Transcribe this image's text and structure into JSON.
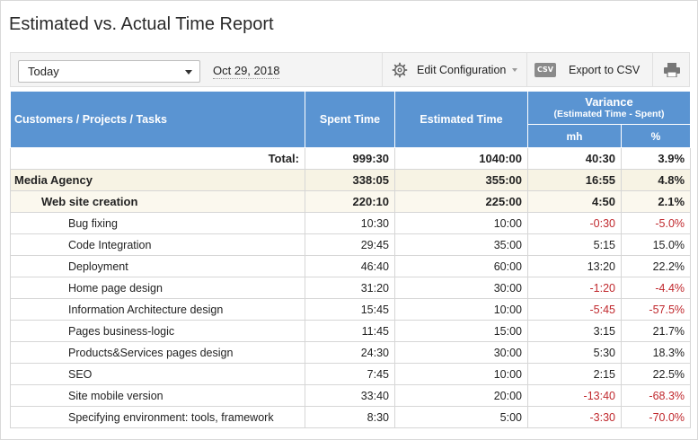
{
  "title": "Estimated vs. Actual Time Report",
  "toolbar": {
    "period": "Today",
    "date": "Oct 29, 2018",
    "edit_config_label": "Edit Configuration",
    "csv_badge": "CSV",
    "export_csv_label": "Export to CSV"
  },
  "columns": {
    "name": "Customers / Projects / Tasks",
    "spent": "Spent Time",
    "estimated": "Estimated Time",
    "variance": "Variance",
    "variance_sub": "(Estimated Time - Spent)",
    "mh": "mh",
    "pct": "%"
  },
  "total": {
    "label": "Total:",
    "spent": "999:30",
    "estimated": "1040:00",
    "mh": "40:30",
    "pct": "3.9%"
  },
  "customer": {
    "name": "Media Agency",
    "spent": "338:05",
    "estimated": "355:00",
    "mh": "16:55",
    "pct": "4.8%"
  },
  "project": {
    "name": "Web site creation",
    "spent": "220:10",
    "estimated": "225:00",
    "mh": "4:50",
    "pct": "2.1%"
  },
  "tasks": [
    {
      "name": "Bug fixing",
      "spent": "10:30",
      "estimated": "10:00",
      "mh": "-0:30",
      "pct": "-5.0%"
    },
    {
      "name": "Code Integration",
      "spent": "29:45",
      "estimated": "35:00",
      "mh": "5:15",
      "pct": "15.0%"
    },
    {
      "name": "Deployment",
      "spent": "46:40",
      "estimated": "60:00",
      "mh": "13:20",
      "pct": "22.2%"
    },
    {
      "name": "Home page design",
      "spent": "31:20",
      "estimated": "30:00",
      "mh": "-1:20",
      "pct": "-4.4%"
    },
    {
      "name": "Information Architecture design",
      "spent": "15:45",
      "estimated": "10:00",
      "mh": "-5:45",
      "pct": "-57.5%"
    },
    {
      "name": "Pages business-logic",
      "spent": "11:45",
      "estimated": "15:00",
      "mh": "3:15",
      "pct": "21.7%"
    },
    {
      "name": "Products&Services pages design",
      "spent": "24:30",
      "estimated": "30:00",
      "mh": "5:30",
      "pct": "18.3%"
    },
    {
      "name": "SEO",
      "spent": "7:45",
      "estimated": "10:00",
      "mh": "2:15",
      "pct": "22.5%"
    },
    {
      "name": "Site mobile version",
      "spent": "33:40",
      "estimated": "20:00",
      "mh": "-13:40",
      "pct": "-68.3%"
    },
    {
      "name": "Specifying environment: tools, framework",
      "spent": "8:30",
      "estimated": "5:00",
      "mh": "-3:30",
      "pct": "-70.0%"
    }
  ],
  "colors": {
    "header_blue": "#5a94d2",
    "negative_red": "#c0282d",
    "customer_row": "#f7f3e4"
  }
}
